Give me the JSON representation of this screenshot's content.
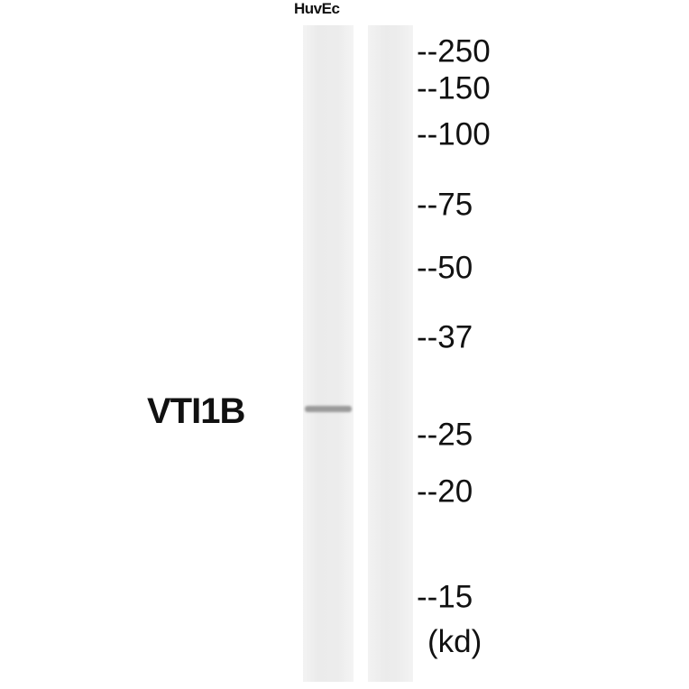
{
  "lane_labels": [
    "HuvEc"
  ],
  "protein_label": "VTI1B",
  "markers": [
    "--250",
    "--150",
    "--100",
    "--75",
    "--50",
    "--37",
    "--25",
    "--20",
    "--15"
  ],
  "unit": "(kd)"
}
